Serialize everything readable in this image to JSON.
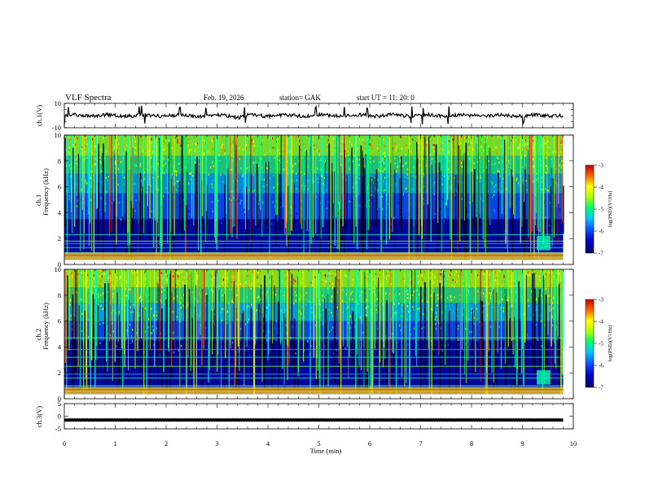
{
  "header": {
    "title": "VLF  Spectra",
    "date": "Feb. 19, 2026",
    "station": "station= GAK",
    "start": "start  UT  =    11: 20: 0"
  },
  "colors": {
    "spectrogram_ramp": [
      "#000066",
      "#0000c8",
      "#0a50ff",
      "#00c8ff",
      "#00ff64",
      "#b4ff00",
      "#ffff00",
      "#ff6400",
      "#c80000"
    ],
    "trace": "#000000",
    "axes": "#000000"
  },
  "chart_data": [
    {
      "type": "line",
      "name": "ch1-waveform",
      "ylabel": "ch.1(V)",
      "ylim": [
        -10,
        10
      ],
      "yticks": [
        "10",
        "-10"
      ],
      "baseline": 0,
      "spikes_min": [
        0.0,
        0.08,
        1.47,
        1.52,
        1.58,
        2.27,
        2.78,
        3.55,
        4.94,
        5.5,
        5.95,
        6.82,
        7.04,
        7.55,
        9.02
      ],
      "trace_end_min": 9.8
    },
    {
      "type": "heatmap",
      "name": "ch1-spectrogram",
      "ylabel_channel": "ch.1",
      "ylabel": "Frequency  (kHz)",
      "ylim": [
        0,
        10
      ],
      "yticks": [
        "0",
        "2",
        "4",
        "6",
        "8",
        "10"
      ],
      "colorbar": {
        "label": "log(PSD)(V²/Hz)",
        "range": [
          -7,
          -3
        ],
        "ticks": [
          "-3",
          "-4",
          "-5",
          "-6",
          "-7"
        ]
      },
      "hum_lines_khz": [
        0.2,
        0.5,
        0.9,
        1.3,
        1.6,
        1.8,
        2.3
      ],
      "data_end_min": 9.8
    },
    {
      "type": "heatmap",
      "name": "ch2-spectrogram",
      "ylabel_channel": "ch.2",
      "ylabel": "Frequency  (kHz)",
      "ylim": [
        0,
        10
      ],
      "yticks": [
        "0",
        "2",
        "4",
        "6",
        "8",
        "10"
      ],
      "colorbar": {
        "label": "log(PSD)(V²/Hz)",
        "range": [
          -7,
          -3
        ],
        "ticks": [
          "-3",
          "-4",
          "-5",
          "-6",
          "-7"
        ]
      },
      "hum_lines_khz": [
        0.2,
        0.6,
        1.0,
        1.6,
        1.9,
        2.5,
        3.2,
        3.8,
        4.7
      ],
      "data_end_min": 9.8
    },
    {
      "type": "line",
      "name": "ch3-waveform",
      "ylabel": "ch.3(V)",
      "ylim": [
        -5,
        5
      ],
      "yticks": [
        "5",
        "0",
        "-5"
      ],
      "level_v": -1.5,
      "trace_end_min": 9.8
    }
  ],
  "xaxis": {
    "label": "Time  (min)",
    "range": [
      0,
      10
    ],
    "ticks": [
      "0",
      "1",
      "2",
      "3",
      "4",
      "5",
      "6",
      "7",
      "8",
      "9",
      "10"
    ]
  }
}
